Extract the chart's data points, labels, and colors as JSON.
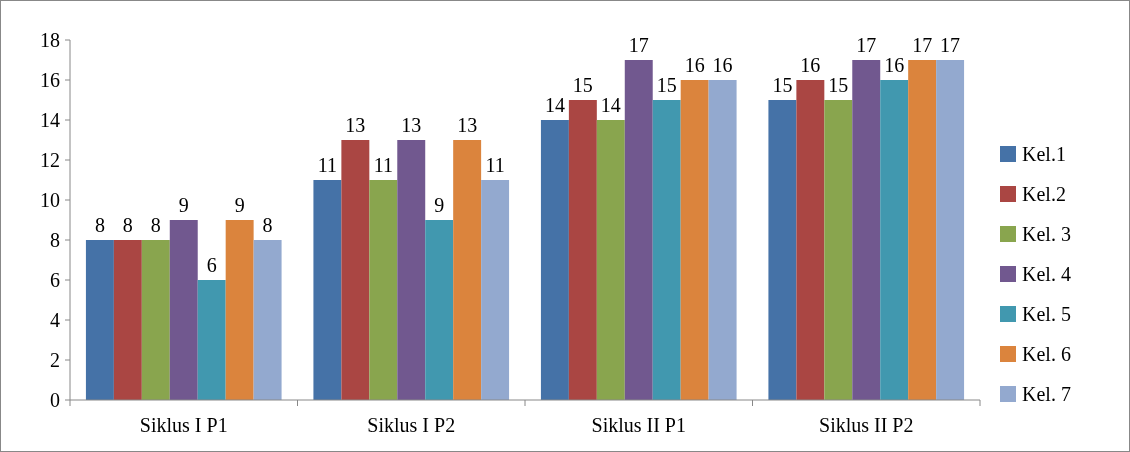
{
  "chart_data": {
    "type": "bar",
    "categories": [
      "Siklus I P1",
      "Siklus I P2",
      "Siklus II P1",
      "Siklus II P2"
    ],
    "series": [
      {
        "name": "Kel.1",
        "color": "#4572a7",
        "values": [
          8,
          11,
          14,
          15
        ]
      },
      {
        "name": "Kel.2",
        "color": "#aa4643",
        "values": [
          8,
          13,
          15,
          16
        ]
      },
      {
        "name": "Kel. 3",
        "color": "#89a54e",
        "values": [
          8,
          11,
          14,
          15
        ]
      },
      {
        "name": "Kel. 4",
        "color": "#71588f",
        "values": [
          9,
          13,
          17,
          17
        ]
      },
      {
        "name": "Kel. 5",
        "color": "#4198af",
        "values": [
          6,
          9,
          15,
          16
        ]
      },
      {
        "name": "Kel. 6",
        "color": "#db843d",
        "values": [
          9,
          13,
          16,
          17
        ]
      },
      {
        "name": "Kel. 7",
        "color": "#93a9cf",
        "values": [
          8,
          11,
          16,
          17
        ]
      }
    ],
    "ylim": [
      0,
      18
    ],
    "yticks": [
      0,
      2,
      4,
      6,
      8,
      10,
      12,
      14,
      16,
      18
    ],
    "grid": false,
    "legend": "right",
    "data_labels": true
  }
}
